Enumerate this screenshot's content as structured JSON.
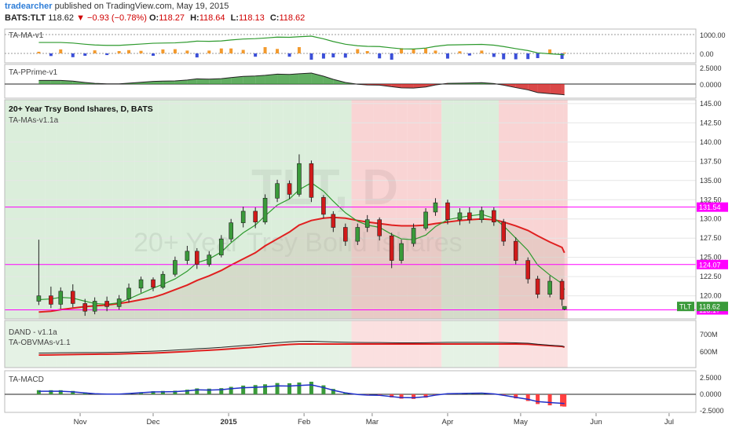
{
  "header": {
    "author": "tradearcher",
    "published_text": "published on TradingView.com, May 19, 2015",
    "symbol": "BATS:TLT",
    "last": "118.62",
    "change": "−0.93 (−0.78%)",
    "open_label": "O:",
    "open": "118.27",
    "high_label": "H:",
    "high": "118.64",
    "low_label": "L:",
    "low": "118.13",
    "close_label": "C:",
    "close": "118.62"
  },
  "colors": {
    "up_candle": "#3a9a3a",
    "down_candle": "#d11a1a",
    "bg_green": "#cfe8cf",
    "bg_red": "#f7c6c6",
    "ma_fast": "#2e9a2e",
    "ma_slow": "#e02020",
    "hline": "#ff00ff",
    "macd_line": "#1f2fc8"
  },
  "chart_data": [
    {
      "type": "line",
      "panel": "indicator-1",
      "title": "TA-MA-v1",
      "y_ticks": [
        "1000.00",
        "0.00"
      ]
    },
    {
      "type": "area",
      "panel": "indicator-2",
      "title": "TA-PPrime-v1",
      "y_ticks": [
        "2.5000",
        "0.0000"
      ]
    },
    {
      "type": "candlestick",
      "panel": "price",
      "title": "20+ Year Trsy Bond Ishares, D, BATS",
      "subtitle": "TA-MAs-v1.1a",
      "watermark_symbol": "TLT, D",
      "watermark_name": "20+ Year Trsy Bond Ishares",
      "ylim": [
        117.0,
        145.5
      ],
      "y_ticks": [
        "145.00",
        "142.50",
        "140.00",
        "137.50",
        "135.00",
        "132.50",
        "130.00",
        "127.50",
        "125.00",
        "122.50",
        "120.00"
      ],
      "x_ticks": [
        "Nov",
        "Dec",
        "2015",
        "Feb",
        "Mar",
        "Apr",
        "May",
        "Jun",
        "Jul"
      ],
      "levels": [
        {
          "value": 131.54,
          "label": "131.54"
        },
        {
          "value": 124.07,
          "label": "124.07"
        },
        {
          "value": 118.17,
          "label": "118.17"
        }
      ],
      "last_price_tag": {
        "symbol": "TLT",
        "value": "118.62"
      },
      "series": [
        {
          "date": "2014-10-15",
          "open": 119.3,
          "high": 127.3,
          "low": 118.8,
          "close": 120.0
        },
        {
          "date": "2014-10-20",
          "open": 120.0,
          "high": 121.2,
          "low": 118.4,
          "close": 118.9
        },
        {
          "date": "2014-10-24",
          "open": 118.9,
          "high": 121.1,
          "low": 118.3,
          "close": 120.6
        },
        {
          "date": "2014-10-29",
          "open": 120.6,
          "high": 121.5,
          "low": 118.5,
          "close": 119.0
        },
        {
          "date": "2014-11-03",
          "open": 119.0,
          "high": 119.6,
          "low": 117.4,
          "close": 118.0
        },
        {
          "date": "2014-11-07",
          "open": 118.0,
          "high": 119.8,
          "low": 117.6,
          "close": 119.3
        },
        {
          "date": "2014-11-12",
          "open": 119.3,
          "high": 119.9,
          "low": 118.0,
          "close": 118.6
        },
        {
          "date": "2014-11-17",
          "open": 118.6,
          "high": 120.1,
          "low": 118.2,
          "close": 119.6
        },
        {
          "date": "2014-11-21",
          "open": 119.6,
          "high": 121.6,
          "low": 119.1,
          "close": 121.0
        },
        {
          "date": "2014-11-26",
          "open": 121.0,
          "high": 122.5,
          "low": 120.4,
          "close": 122.1
        },
        {
          "date": "2014-12-01",
          "open": 122.1,
          "high": 122.4,
          "low": 120.6,
          "close": 121.1
        },
        {
          "date": "2014-12-05",
          "open": 121.1,
          "high": 123.2,
          "low": 120.9,
          "close": 122.8
        },
        {
          "date": "2014-12-10",
          "open": 122.8,
          "high": 125.1,
          "low": 122.5,
          "close": 124.6
        },
        {
          "date": "2014-12-15",
          "open": 124.6,
          "high": 126.5,
          "low": 124.1,
          "close": 125.8
        },
        {
          "date": "2014-12-19",
          "open": 125.8,
          "high": 126.2,
          "low": 123.5,
          "close": 124.1
        },
        {
          "date": "2014-12-24",
          "open": 124.1,
          "high": 125.8,
          "low": 123.8,
          "close": 125.3
        },
        {
          "date": "2014-12-29",
          "open": 125.3,
          "high": 127.9,
          "low": 125.0,
          "close": 127.4
        },
        {
          "date": "2015-01-02",
          "open": 127.4,
          "high": 130.0,
          "low": 127.0,
          "close": 129.5
        },
        {
          "date": "2015-01-07",
          "open": 129.5,
          "high": 131.6,
          "low": 128.9,
          "close": 131.0
        },
        {
          "date": "2015-01-12",
          "open": 131.0,
          "high": 131.5,
          "low": 128.8,
          "close": 129.6
        },
        {
          "date": "2015-01-16",
          "open": 129.6,
          "high": 133.2,
          "low": 129.3,
          "close": 132.7
        },
        {
          "date": "2015-01-21",
          "open": 132.7,
          "high": 135.1,
          "low": 132.2,
          "close": 134.6
        },
        {
          "date": "2015-01-26",
          "open": 134.6,
          "high": 135.0,
          "low": 132.6,
          "close": 133.2
        },
        {
          "date": "2015-01-30",
          "open": 133.2,
          "high": 138.4,
          "low": 132.9,
          "close": 137.2
        },
        {
          "date": "2015-02-04",
          "open": 137.2,
          "high": 137.6,
          "low": 132.2,
          "close": 132.8
        },
        {
          "date": "2015-02-09",
          "open": 132.8,
          "high": 133.1,
          "low": 130.1,
          "close": 130.6
        },
        {
          "date": "2015-02-13",
          "open": 130.6,
          "high": 131.0,
          "low": 128.3,
          "close": 128.9
        },
        {
          "date": "2015-02-18",
          "open": 128.9,
          "high": 129.4,
          "low": 126.5,
          "close": 127.1
        },
        {
          "date": "2015-02-23",
          "open": 127.1,
          "high": 129.4,
          "low": 126.6,
          "close": 128.9
        },
        {
          "date": "2015-02-27",
          "open": 128.9,
          "high": 130.5,
          "low": 128.3,
          "close": 129.9
        },
        {
          "date": "2015-03-04",
          "open": 129.9,
          "high": 130.2,
          "low": 127.2,
          "close": 127.8
        },
        {
          "date": "2015-03-09",
          "open": 127.8,
          "high": 128.2,
          "low": 123.6,
          "close": 124.6
        },
        {
          "date": "2015-03-13",
          "open": 124.6,
          "high": 127.3,
          "low": 124.2,
          "close": 126.8
        },
        {
          "date": "2015-03-18",
          "open": 126.8,
          "high": 129.4,
          "low": 126.4,
          "close": 128.8
        },
        {
          "date": "2015-03-23",
          "open": 128.8,
          "high": 131.4,
          "low": 128.5,
          "close": 130.9
        },
        {
          "date": "2015-03-27",
          "open": 130.9,
          "high": 132.7,
          "low": 130.4,
          "close": 132.1
        },
        {
          "date": "2015-04-01",
          "open": 132.1,
          "high": 132.5,
          "low": 129.3,
          "close": 129.9
        },
        {
          "date": "2015-04-06",
          "open": 129.9,
          "high": 131.4,
          "low": 129.2,
          "close": 130.8
        },
        {
          "date": "2015-04-10",
          "open": 130.8,
          "high": 131.5,
          "low": 129.4,
          "close": 129.9
        },
        {
          "date": "2015-04-15",
          "open": 129.9,
          "high": 131.6,
          "low": 129.5,
          "close": 131.1
        },
        {
          "date": "2015-04-20",
          "open": 131.1,
          "high": 131.5,
          "low": 129.1,
          "close": 129.6
        },
        {
          "date": "2015-04-24",
          "open": 129.6,
          "high": 130.0,
          "low": 126.5,
          "close": 127.1
        },
        {
          "date": "2015-04-29",
          "open": 127.1,
          "high": 127.6,
          "low": 124.1,
          "close": 124.6
        },
        {
          "date": "2015-05-04",
          "open": 124.6,
          "high": 125.0,
          "low": 121.6,
          "close": 122.2
        },
        {
          "date": "2015-05-08",
          "open": 122.2,
          "high": 122.6,
          "low": 119.7,
          "close": 120.2
        },
        {
          "date": "2015-05-13",
          "open": 120.2,
          "high": 122.6,
          "low": 119.8,
          "close": 121.9
        },
        {
          "date": "2015-05-18",
          "open": 121.9,
          "high": 122.2,
          "low": 118.7,
          "close": 119.55
        },
        {
          "date": "2015-05-19",
          "open": 118.27,
          "high": 118.64,
          "low": 118.13,
          "close": 118.62
        }
      ],
      "ma_fast": [
        119.5,
        119.6,
        119.8,
        119.7,
        119.3,
        119.0,
        118.9,
        119.1,
        119.6,
        120.3,
        121.0,
        121.5,
        122.2,
        123.2,
        124.3,
        124.8,
        125.7,
        126.9,
        128.2,
        129.2,
        130.4,
        131.8,
        132.6,
        133.8,
        134.7,
        133.6,
        132.3,
        130.8,
        129.7,
        129.2,
        128.9,
        128.0,
        127.4,
        127.3,
        127.9,
        129.0,
        129.9,
        130.2,
        130.4,
        130.6,
        130.1,
        129.1,
        127.5,
        125.9,
        124.0,
        122.7,
        121.6,
        120.8
      ],
      "ma_slow": [
        117.9,
        118.0,
        118.2,
        118.4,
        118.6,
        118.7,
        118.8,
        119.0,
        119.2,
        119.5,
        119.8,
        120.2,
        120.8,
        121.4,
        122.0,
        122.6,
        123.3,
        124.0,
        124.8,
        125.6,
        126.5,
        127.4,
        128.3,
        129.2,
        129.8,
        130.1,
        130.2,
        130.1,
        129.8,
        129.6,
        129.4,
        129.2,
        129.1,
        129.1,
        129.2,
        129.4,
        129.6,
        129.8,
        129.9,
        130.0,
        129.9,
        129.6,
        129.1,
        128.5,
        127.8,
        127.0,
        126.3,
        125.6
      ]
    },
    {
      "type": "area",
      "panel": "volume",
      "title": "DAND - v1.1a",
      "subtitle": "TA-OBVMAs-v1.1",
      "y_ticks": [
        "700M",
        "600M"
      ]
    },
    {
      "type": "bar",
      "panel": "macd",
      "title": "TA-MACD",
      "y_ticks": [
        "2.5000",
        "0.0000",
        "-2.5000"
      ]
    }
  ]
}
